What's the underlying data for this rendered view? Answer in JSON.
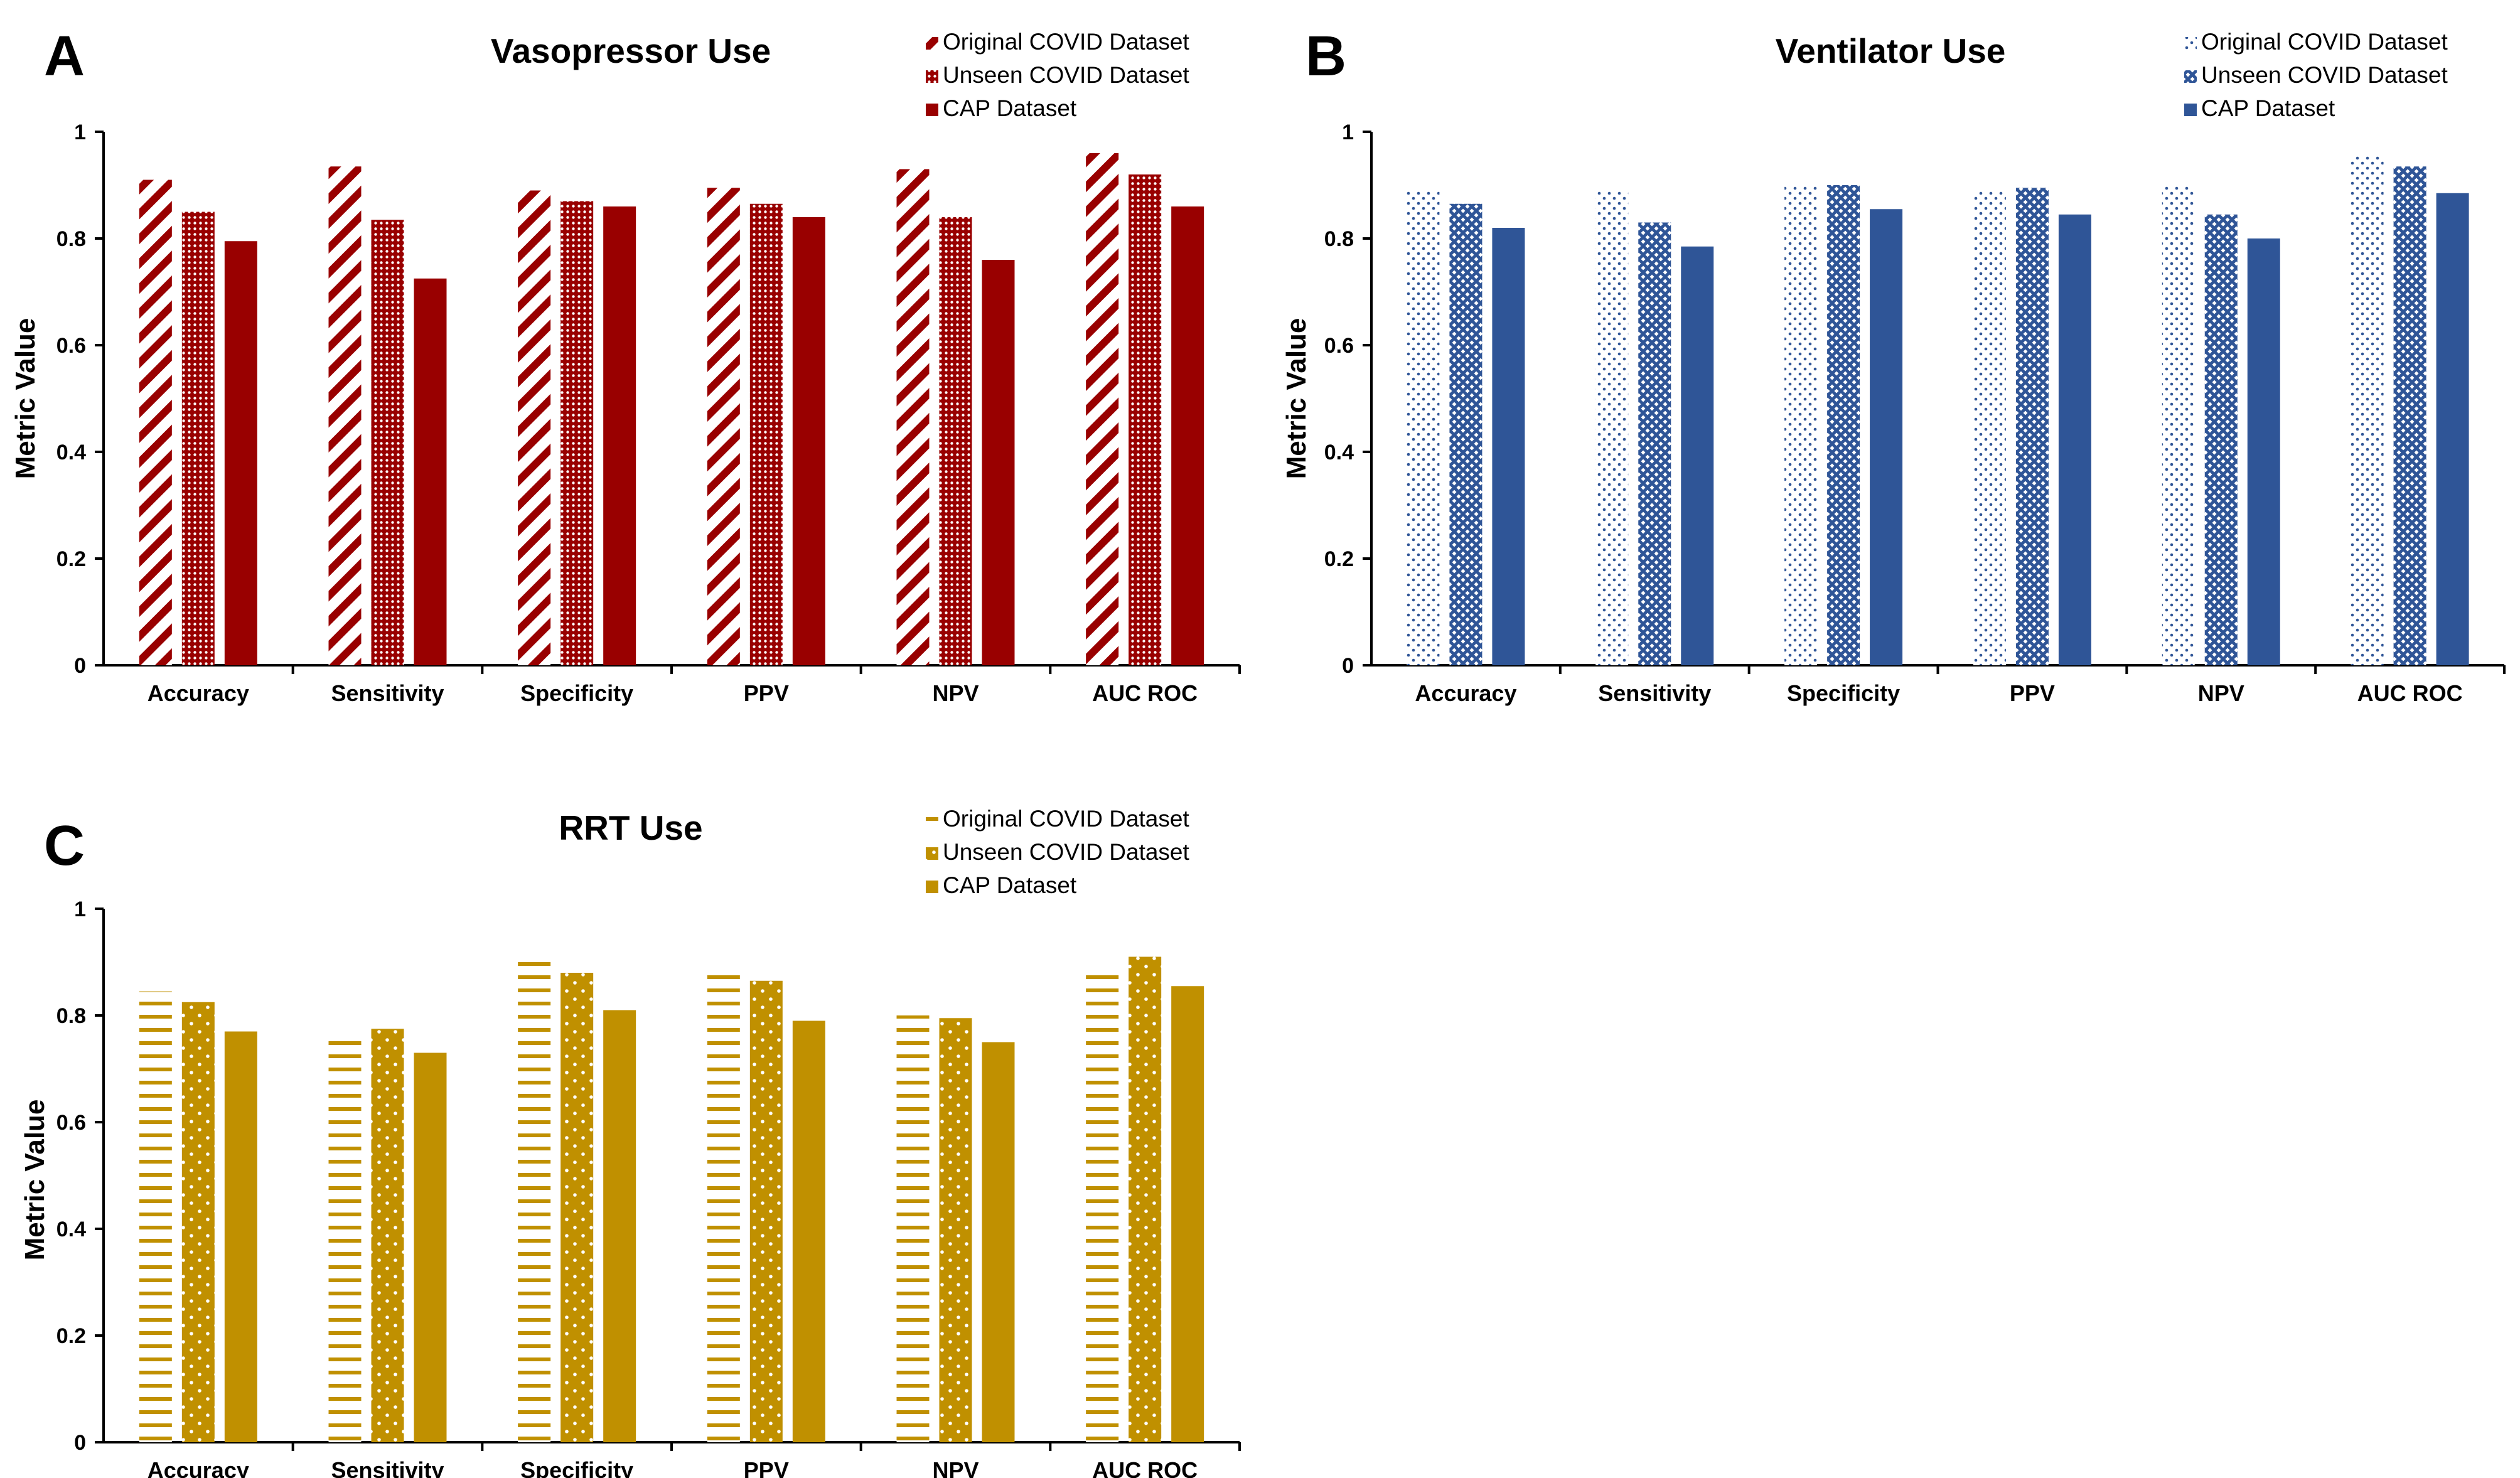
{
  "chart_data": [
    {
      "panel": "A",
      "type": "bar",
      "title": "Vasopressor Use",
      "ylabel": "Metric Value",
      "xlabel": "",
      "ylim": [
        0,
        1
      ],
      "yticks": [
        "0",
        "0.2",
        "0.4",
        "0.6",
        "0.8",
        "1"
      ],
      "categories": [
        "Accuracy",
        "Sensitivity",
        "Specificity",
        "PPV",
        "NPV",
        "AUC ROC"
      ],
      "legend_position": "top-right",
      "series": [
        {
          "name": "Original COVID Dataset",
          "pattern": "diagonal-stripes",
          "values": [
            0.91,
            0.935,
            0.89,
            0.895,
            0.93,
            0.96
          ]
        },
        {
          "name": "Unseen COVID Dataset",
          "pattern": "dots",
          "values": [
            0.85,
            0.835,
            0.87,
            0.865,
            0.84,
            0.92
          ]
        },
        {
          "name": "CAP Dataset",
          "pattern": "solid",
          "values": [
            0.795,
            0.725,
            0.86,
            0.84,
            0.76,
            0.86
          ]
        }
      ],
      "color": "#990000"
    },
    {
      "panel": "B",
      "type": "bar",
      "title": "Ventilator Use",
      "ylabel": "Metric Value",
      "xlabel": "",
      "ylim": [
        0,
        1
      ],
      "yticks": [
        "0",
        "0.2",
        "0.4",
        "0.6",
        "0.8",
        "1"
      ],
      "categories": [
        "Accuracy",
        "Sensitivity",
        "Specificity",
        "PPV",
        "NPV",
        "AUC ROC"
      ],
      "legend_position": "top-right",
      "series": [
        {
          "name": "Original COVID Dataset",
          "pattern": "sparse-dots",
          "values": [
            0.89,
            0.89,
            0.9,
            0.89,
            0.9,
            0.955
          ]
        },
        {
          "name": "Unseen COVID Dataset",
          "pattern": "crosshatch",
          "values": [
            0.865,
            0.83,
            0.9,
            0.895,
            0.845,
            0.935
          ]
        },
        {
          "name": "CAP Dataset",
          "pattern": "solid",
          "values": [
            0.82,
            0.785,
            0.855,
            0.845,
            0.8,
            0.885
          ]
        }
      ],
      "color": "#2f5597"
    },
    {
      "panel": "C",
      "type": "bar",
      "title": "RRT Use",
      "ylabel": "Metric Value",
      "xlabel": "",
      "ylim": [
        0,
        1
      ],
      "yticks": [
        "0",
        "0.2",
        "0.4",
        "0.6",
        "0.8",
        "1"
      ],
      "categories": [
        "Accuracy",
        "Sensitivity",
        "Specificity",
        "PPV",
        "NPV",
        "AUC ROC"
      ],
      "legend_position": "top-right",
      "series": [
        {
          "name": "Original COVID Dataset",
          "pattern": "horizontal-lines",
          "values": [
            0.845,
            0.76,
            0.91,
            0.89,
            0.8,
            0.89
          ]
        },
        {
          "name": "Unseen COVID Dataset",
          "pattern": "dots",
          "values": [
            0.825,
            0.775,
            0.88,
            0.865,
            0.795,
            0.91
          ]
        },
        {
          "name": "CAP Dataset",
          "pattern": "solid",
          "values": [
            0.77,
            0.73,
            0.81,
            0.79,
            0.75,
            0.855
          ]
        }
      ],
      "color": "#c09000"
    }
  ]
}
